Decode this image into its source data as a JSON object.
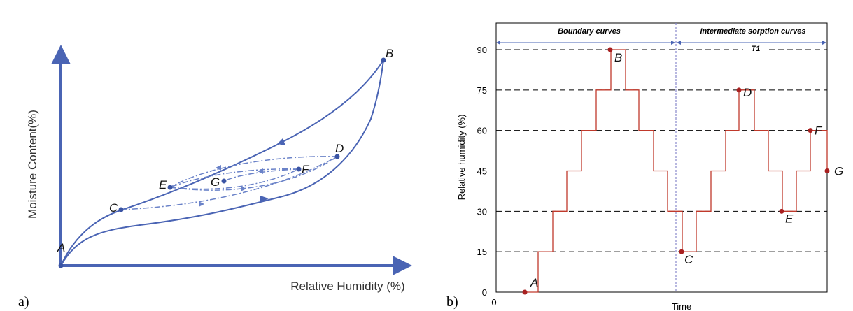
{
  "panel_a": {
    "letter": "a)",
    "chart_data": {
      "type": "line",
      "xlabel": "Relative Humidity (%)",
      "ylabel": "Moisture Content(%)",
      "points": [
        {
          "name": "A"
        },
        {
          "name": "B"
        },
        {
          "name": "C"
        },
        {
          "name": "D"
        },
        {
          "name": "E"
        },
        {
          "name": "F"
        },
        {
          "name": "G"
        }
      ]
    },
    "colors": {
      "curve": "#4a64b4",
      "axis": "#4a64b4"
    }
  },
  "panel_b": {
    "letter": "b)",
    "chart_data": {
      "type": "line",
      "xlabel": "Time",
      "ylabel": "Relative humidity (%)",
      "x_ticks": [
        "0"
      ],
      "y_ticks": [
        "0",
        "15",
        "30",
        "45",
        "60",
        "75",
        "90"
      ],
      "ylim": [
        0,
        90
      ],
      "headers": [
        "Boundary curves",
        "Intermediate sorption curves"
      ],
      "interval_label": "T1",
      "series": [
        {
          "values": [
            0,
            15,
            30,
            45,
            60,
            75,
            90,
            75,
            60,
            45,
            30,
            15,
            30,
            45,
            60,
            75,
            60,
            45,
            30,
            45,
            60,
            45
          ]
        }
      ],
      "points": [
        {
          "name": "A",
          "value": 0
        },
        {
          "name": "B",
          "value": 90
        },
        {
          "name": "C",
          "value": 15
        },
        {
          "name": "D",
          "value": 75
        },
        {
          "name": "E",
          "value": 30
        },
        {
          "name": "F",
          "value": 60
        },
        {
          "name": "G",
          "value": 45
        }
      ]
    },
    "colors": {
      "step": "#c0392b",
      "grid": "#000000",
      "divider": "#8888cc",
      "arrow": "#4a64b4"
    }
  }
}
